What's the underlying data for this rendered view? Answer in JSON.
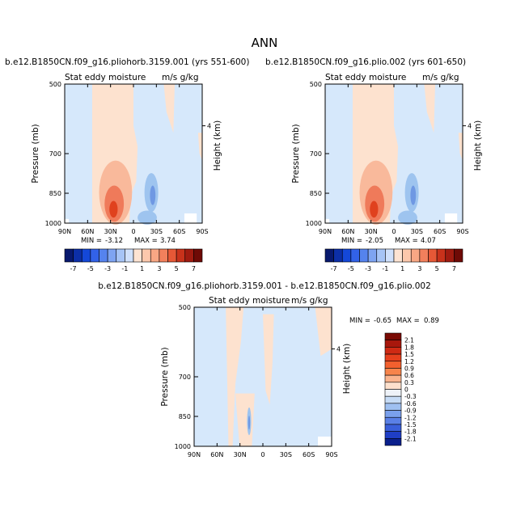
{
  "page_title": "ANN",
  "colors": {
    "pos_light": "#fde2cf",
    "pos_mid": "#f9b99b",
    "pos_strong": "#ef7a5a",
    "pos_max": "#e0411e",
    "neg_light": "#d6e8fb",
    "neg_mid": "#9ec4ef",
    "neg_strong": "#6f98e3",
    "neg_max": "#3a63d2"
  },
  "chart_data": [
    {
      "type": "contour",
      "title": "b.e12.B1850CN.f09_g16.pliohorb.3159.001 (yrs 551-600)",
      "subtitle_left": "Stat eddy moisture",
      "subtitle_right": "m/s g/kg",
      "xlabel": "",
      "ylabel": "Pressure (mb)",
      "ylabel_right": "Height (km)",
      "x_ticks": [
        "90N",
        "60N",
        "30N",
        "0",
        "30S",
        "60S",
        "90S"
      ],
      "y_ticks": [
        "500",
        "700",
        "850",
        "1000"
      ],
      "y_right_ticks": [
        "4"
      ],
      "stats": {
        "min_label": "MIN =",
        "min": "-3.12",
        "max_label": "MAX =",
        "max": "3.74"
      },
      "colorbar": {
        "labels": [
          "-7",
          "-5",
          "-3",
          "-1",
          "1",
          "3",
          "5",
          "7"
        ],
        "colors": [
          "#08196e",
          "#0c2fa7",
          "#1448d8",
          "#3262e8",
          "#5583ee",
          "#7ea4f2",
          "#a6c4f6",
          "#cfe0fb",
          "#fde3d2",
          "#fcc8ac",
          "#f8a784",
          "#f2805c",
          "#e65836",
          "#c8321b",
          "#a01b10",
          "#6e0a06"
        ]
      }
    },
    {
      "type": "contour",
      "title": "b.e12.B1850CN.f09_g16.plio.002 (yrs 601-650)",
      "subtitle_left": "Stat eddy moisture",
      "subtitle_right": "m/s g/kg",
      "xlabel": "",
      "ylabel": "Pressure (mb)",
      "ylabel_right": "Height (km)",
      "x_ticks": [
        "90N",
        "60N",
        "30N",
        "0",
        "30S",
        "60S",
        "90S"
      ],
      "y_ticks": [
        "500",
        "700",
        "850",
        "1000"
      ],
      "y_right_ticks": [
        "4"
      ],
      "stats": {
        "min_label": "MIN =",
        "min": "-2.05",
        "max_label": "MAX =",
        "max": "4.07"
      },
      "colorbar": {
        "labels": [
          "-7",
          "-5",
          "-3",
          "-1",
          "1",
          "3",
          "5",
          "7"
        ],
        "colors": [
          "#08196e",
          "#0c2fa7",
          "#1448d8",
          "#3262e8",
          "#5583ee",
          "#7ea4f2",
          "#a6c4f6",
          "#cfe0fb",
          "#fde3d2",
          "#fcc8ac",
          "#f8a784",
          "#f2805c",
          "#e65836",
          "#c8321b",
          "#a01b10",
          "#6e0a06"
        ]
      }
    },
    {
      "type": "contour",
      "title": "b.e12.B1850CN.f09_g16.pliohorb.3159.001 - b.e12.B1850CN.f09_g16.plio.002",
      "subtitle_left": "Stat eddy moisture",
      "subtitle_right": "m/s g/kg",
      "xlabel": "",
      "ylabel": "Pressure (mb)",
      "ylabel_right": "Height (km)",
      "x_ticks": [
        "90N",
        "60N",
        "30N",
        "0",
        "30S",
        "60S",
        "90S"
      ],
      "y_ticks": [
        "500",
        "700",
        "850",
        "1000"
      ],
      "y_right_ticks": [
        "4"
      ],
      "stats": {
        "min_label": "MIN =",
        "min": "-0.65",
        "max_label": "MAX =",
        "max": "0.89"
      },
      "colorbar": {
        "labels": [
          "2.1",
          "1.8",
          "1.5",
          "1.2",
          "0.9",
          "0.6",
          "0.3",
          "0",
          "-0.3",
          "-0.6",
          "-0.9",
          "-1.2",
          "-1.5",
          "-1.8",
          "-2.1"
        ],
        "colors": [
          "#7a0a04",
          "#a8170c",
          "#cf2a14",
          "#e6401d",
          "#f2602e",
          "#f7844b",
          "#fab48e",
          "#fde0cc",
          "#eef2f8",
          "#c7dcf6",
          "#9fc0f1",
          "#7aa0ec",
          "#5a80e6",
          "#3a5fda",
          "#1f3ec6",
          "#0a1f8c"
        ]
      }
    }
  ]
}
